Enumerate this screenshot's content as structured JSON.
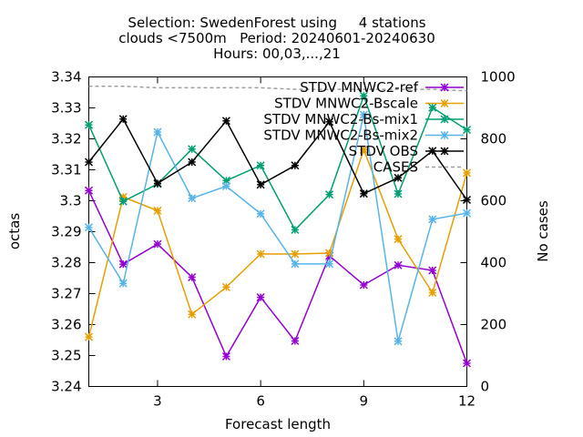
{
  "chart_data": {
    "type": "line",
    "title_lines": [
      "Selection: SwedenForest using     4 stations",
      "clouds <7500m   Period: 20240601-20240630",
      "Hours: 00,03,...,21"
    ],
    "xlabel": "Forecast length",
    "ylabel": "octas",
    "y2label": "No cases",
    "xlim": [
      1,
      12
    ],
    "ylim": [
      3.24,
      3.34
    ],
    "y2lim": [
      0,
      1000
    ],
    "xticks": [
      3,
      6,
      9,
      12
    ],
    "yticks": [
      3.24,
      3.25,
      3.26,
      3.27,
      3.28,
      3.29,
      3.3,
      3.31,
      3.32,
      3.33,
      3.34
    ],
    "ytick_labels": [
      "3.24",
      "3.25",
      "3.26",
      "3.27",
      "3.28",
      "3.29",
      "3.3",
      "3.31",
      "3.32",
      "3.33",
      "3.34"
    ],
    "y2ticks": [
      0,
      200,
      400,
      600,
      800,
      1000
    ],
    "legend_position": "top-right",
    "x": [
      1,
      2,
      3,
      4,
      5,
      6,
      7,
      8,
      9,
      10,
      11,
      12
    ],
    "series": [
      {
        "name": "STDV MNWC2-ref",
        "color": "#9400d3",
        "values": [
          3.3033,
          3.2795,
          3.286,
          3.2753,
          3.2497,
          3.2688,
          3.2547,
          3.2822,
          3.2728,
          3.2792,
          3.2775,
          3.2475
        ]
      },
      {
        "name": "STDV MNWC2-Bscale",
        "color": "#e69f00",
        "values": [
          3.256,
          3.3012,
          3.2968,
          3.2633,
          3.2721,
          3.2828,
          3.2828,
          3.2831,
          3.3165,
          3.2876,
          3.2703,
          3.309
        ]
      },
      {
        "name": "STDV MNWC2-Bs-mix1",
        "color": "#009e73",
        "values": [
          3.3245,
          3.2998,
          3.3054,
          3.3167,
          3.3065,
          3.3114,
          3.2906,
          3.302,
          3.3339,
          3.3022,
          3.3301,
          3.3229
        ]
      },
      {
        "name": "STDV MNWC2-Bs-mix2",
        "color": "#56b4e9",
        "values": [
          3.2914,
          3.2733,
          3.3222,
          3.3008,
          3.3047,
          3.2958,
          3.2796,
          3.2796,
          3.3278,
          3.2546,
          3.294,
          3.296
        ]
      },
      {
        "name": "STDV OBS",
        "color": "#000000",
        "values": [
          3.3125,
          3.3264,
          3.3056,
          3.3125,
          3.3258,
          3.3052,
          3.3114,
          3.3255,
          3.3023,
          3.3074,
          3.3161,
          3.3003
        ]
      }
    ],
    "cases": {
      "name": "CASES",
      "color": "#a0a0a0",
      "values": [
        970,
        970,
        965,
        965,
        965,
        965,
        960,
        960,
        960,
        960,
        960,
        955
      ]
    }
  }
}
